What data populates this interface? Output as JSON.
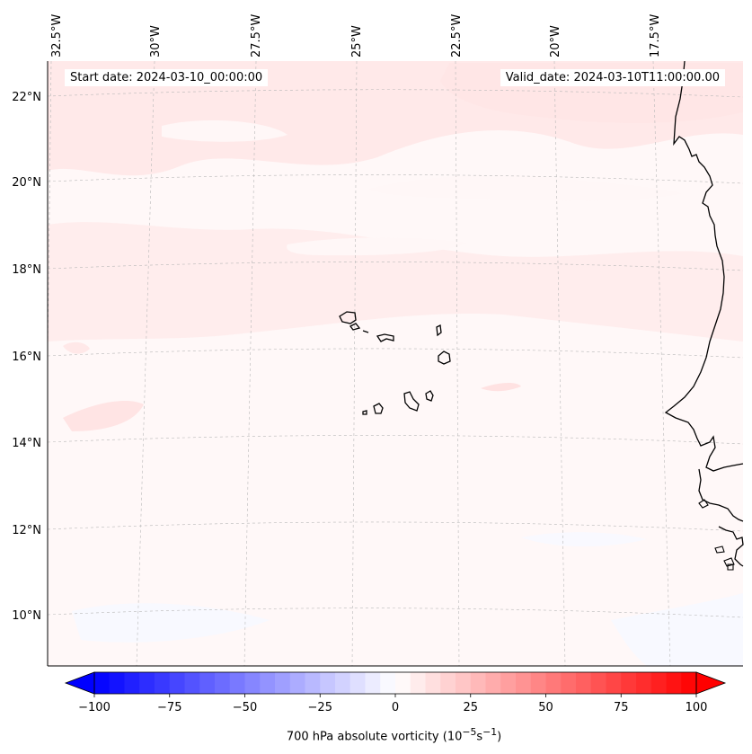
{
  "map": {
    "start_date": "Start date: 2024-03-10_00:00:00",
    "valid_date": "Valid_date: 2024-03-10T11:00:00.00",
    "longitude_labels": [
      "32.5°W",
      "30°W",
      "27.5°W",
      "25°W",
      "22.5°W",
      "20°W",
      "17.5°W"
    ],
    "latitude_labels": [
      "22°N",
      "20°N",
      "18°N",
      "16°N",
      "14°N",
      "12°N",
      "10°N"
    ],
    "field": "700 hPa absolute vorticity",
    "coastline_color": "#000000",
    "gridline_color": "#b0b0b0"
  },
  "colorbar": {
    "label": "700 hPa absolute vorticity (10",
    "label_exp1": "−5",
    "label_mid": "s",
    "label_exp2": "−1",
    "label_end": ")",
    "ticks": [
      "−100",
      "−75",
      "−50",
      "−25",
      "0",
      "25",
      "50",
      "75",
      "100"
    ],
    "range": [
      -100,
      100
    ],
    "step": 5,
    "cmap": "bwr",
    "extend": "both"
  }
}
